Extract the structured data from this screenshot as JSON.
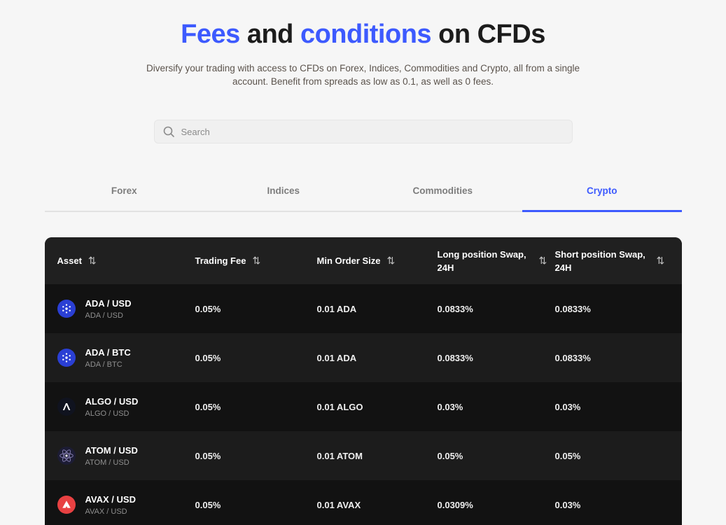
{
  "colors": {
    "accent": "#3d5afe",
    "table_header_bg": "#202020",
    "row_dark": "#121212",
    "row_light": "#1c1c1c"
  },
  "page": {
    "title_parts": [
      {
        "text": "Fees",
        "accent": true
      },
      {
        "text": " and ",
        "accent": false
      },
      {
        "text": "conditions",
        "accent": true
      },
      {
        "text": " on CFDs",
        "accent": false
      }
    ],
    "subtitle": "Diversify your trading with access to CFDs on Forex, Indices, Commodities and Crypto, all from a single account. Benefit from spreads as low as 0.1, as well as 0 fees."
  },
  "search": {
    "placeholder": "Search"
  },
  "tabs": [
    {
      "label": "Forex",
      "active": false
    },
    {
      "label": "Indices",
      "active": false
    },
    {
      "label": "Commodities",
      "active": false
    },
    {
      "label": "Crypto",
      "active": true
    }
  ],
  "icons": {
    "cardano": {
      "bg": "#2a3fd4"
    },
    "algorand": {
      "bg": "#10131f"
    },
    "cosmos": {
      "bg": "#1c1c34"
    },
    "avalanche": {
      "bg": "#e84142"
    }
  },
  "table": {
    "sort_icon": "⇅",
    "columns": [
      "Asset",
      "Trading Fee",
      "Min Order Size",
      "Long position Swap, 24H",
      "Short position Swap, 24H"
    ],
    "rows": [
      {
        "icon": "cardano",
        "symbol": "ADA / USD",
        "name": "ADA / USD",
        "trading_fee": "0.05%",
        "min_order": "0.01 ADA",
        "long_swap": "0.0833%",
        "short_swap": "0.0833%"
      },
      {
        "icon": "cardano",
        "symbol": "ADA / BTC",
        "name": "ADA / BTC",
        "trading_fee": "0.05%",
        "min_order": "0.01 ADA",
        "long_swap": "0.0833%",
        "short_swap": "0.0833%"
      },
      {
        "icon": "algorand",
        "symbol": "ALGO / USD",
        "name": "ALGO / USD",
        "trading_fee": "0.05%",
        "min_order": "0.01 ALGO",
        "long_swap": "0.03%",
        "short_swap": "0.03%"
      },
      {
        "icon": "cosmos",
        "symbol": "ATOM / USD",
        "name": "ATOM / USD",
        "trading_fee": "0.05%",
        "min_order": "0.01 ATOM",
        "long_swap": "0.05%",
        "short_swap": "0.05%"
      },
      {
        "icon": "avalanche",
        "symbol": "AVAX / USD",
        "name": "AVAX / USD",
        "trading_fee": "0.05%",
        "min_order": "0.01 AVAX",
        "long_swap": "0.0309%",
        "short_swap": "0.03%"
      }
    ]
  }
}
